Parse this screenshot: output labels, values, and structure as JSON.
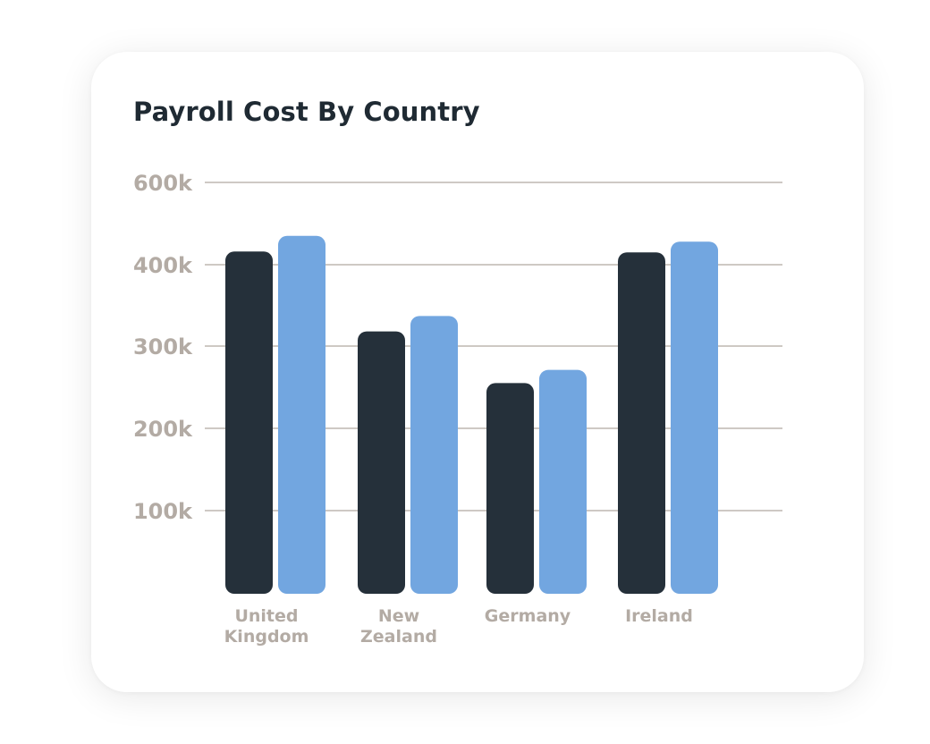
{
  "chart_data": {
    "type": "bar",
    "title": "Payroll Cost By Country",
    "xlabel": "",
    "ylabel": "",
    "categories": [
      [
        "United",
        "Kingdom"
      ],
      [
        "New",
        "Zealand"
      ],
      [
        "Germany"
      ],
      [
        "Ireland"
      ]
    ],
    "y_ticks": [
      {
        "value": 100000,
        "label": "100k"
      },
      {
        "value": 200000,
        "label": "200k"
      },
      {
        "value": 300000,
        "label": "300k"
      },
      {
        "value": 400000,
        "label": "400k"
      },
      {
        "value": 600000,
        "label": "600k"
      }
    ],
    "series": [
      {
        "color": "#25303a",
        "values": [
          432000,
          318000,
          255000,
          430000
        ]
      },
      {
        "color": "#72a6e0",
        "values": [
          470000,
          337000,
          271000,
          456000
        ]
      }
    ],
    "grid": true,
    "legend": "none"
  }
}
